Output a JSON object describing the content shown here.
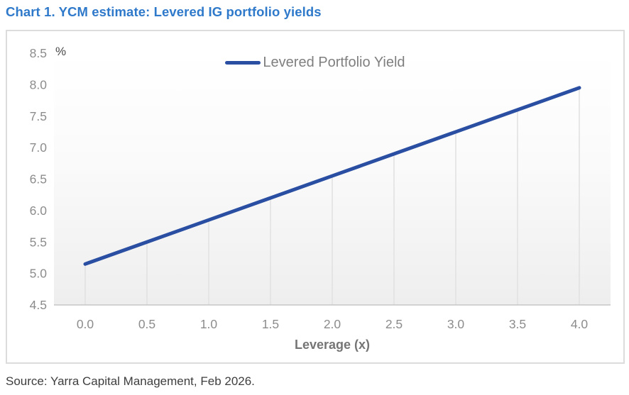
{
  "title": "Chart 1. YCM estimate: Levered IG portfolio yields",
  "source": "Source: Yarra Capital Management, Feb 2026.",
  "legend": {
    "label": "Levered Portfolio Yield"
  },
  "colors": {
    "title_blue": "#2f79cb",
    "line_blue": "#2a4fa2",
    "tick_gray": "#8c8c8c",
    "drop_line_gray": "#e2e2e2",
    "axis_line_gray": "#c6c6c6",
    "plot_bg_top": "#ffffff",
    "plot_bg_bottom": "#eeeeee"
  },
  "chart_data": {
    "type": "line",
    "title": "Chart 1. YCM estimate: Levered IG portfolio yields",
    "xlabel": "Leverage (x)",
    "ylabel": "%",
    "x": [
      0.0,
      0.5,
      1.0,
      1.5,
      2.0,
      2.5,
      3.0,
      3.5,
      4.0
    ],
    "series": [
      {
        "name": "Levered Portfolio Yield",
        "values": [
          5.15,
          5.5,
          5.85,
          6.2,
          6.55,
          6.9,
          7.25,
          7.6,
          7.95
        ]
      }
    ],
    "xlim": [
      0.0,
      4.0
    ],
    "ylim": [
      4.5,
      8.5
    ],
    "xticks": [
      "0.0",
      "0.5",
      "1.0",
      "1.5",
      "2.0",
      "2.5",
      "3.0",
      "3.5",
      "4.0"
    ],
    "yticks": [
      "4.5",
      "5.0",
      "5.5",
      "6.0",
      "6.5",
      "7.0",
      "7.5",
      "8.0",
      "8.5"
    ],
    "grid": "vertical drop lines from data points to x-axis",
    "legend_position": "top-center",
    "legend_entries": [
      "Levered Portfolio Yield"
    ]
  }
}
